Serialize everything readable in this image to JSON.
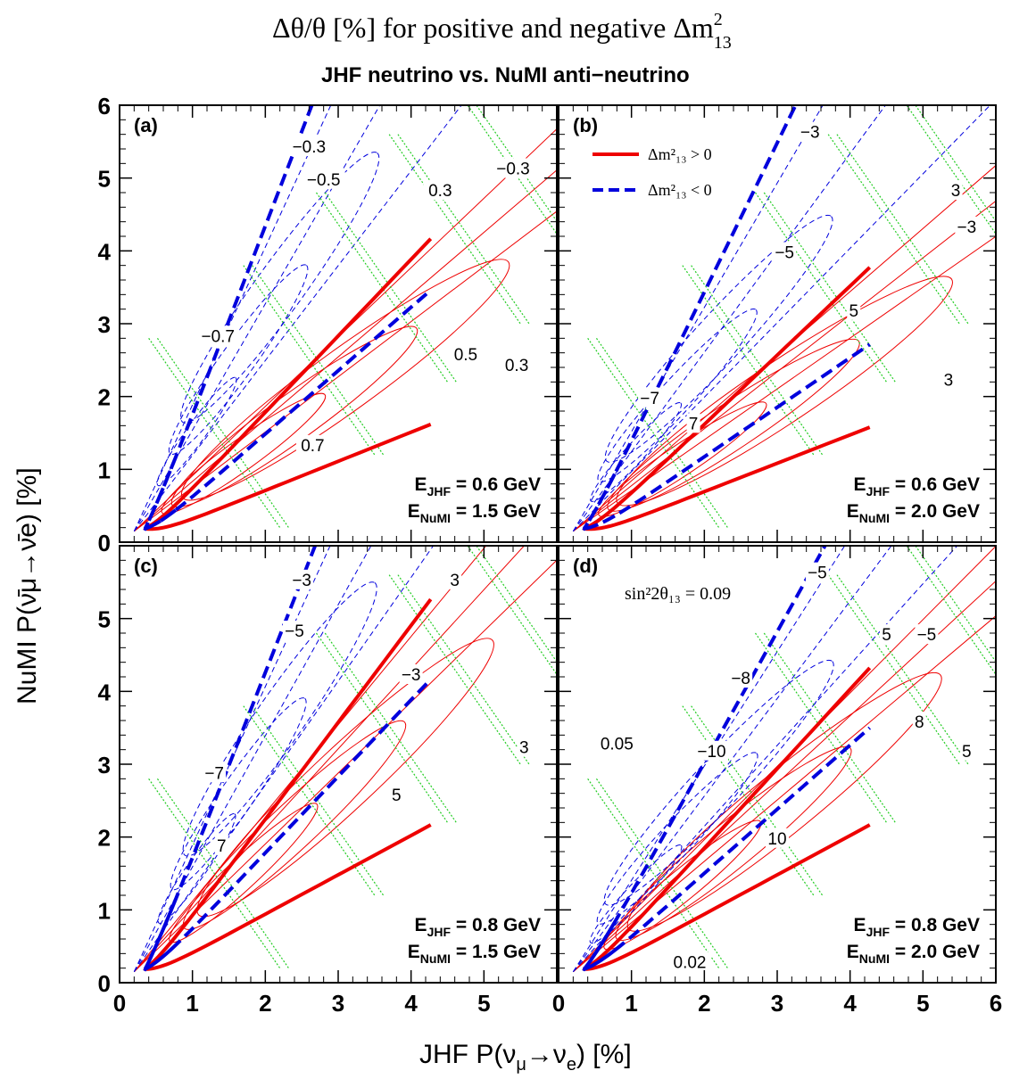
{
  "figure": {
    "title": "Δθ/θ [%]  for positive and negative Δm",
    "title_sup": "2",
    "title_sub": "13",
    "subtitle": "JHF neutrino vs. NuMI anti−neutrino",
    "xlabel_pre": "JHF P(ν",
    "xlabel_sub1": "μ",
    "xlabel_mid": "→ν",
    "xlabel_sub2": "e",
    "xlabel_post": ") [%]",
    "ylabel": "NuMI P(ν̄μ→ν̄e) [%]",
    "legend": {
      "pos_label": "Δm²₁₃ > 0",
      "neg_label": "Δm²₁₃ < 0",
      "pos_color": "#ee0000",
      "neg_color": "#0000dd"
    },
    "colors": {
      "red": "#ee0000",
      "blue": "#0000dd",
      "green": "#22cc22"
    }
  },
  "chart_data": [
    {
      "panel": "(a)",
      "type": "line",
      "energy_line1": "E",
      "energy_sub1": "JHF",
      "energy_val1": " = 0.6 GeV",
      "energy_line2": "E",
      "energy_sub2": "NuMI",
      "energy_val2": " = 1.5 GeV",
      "xlim": [
        0,
        6
      ],
      "ylim": [
        0,
        6
      ],
      "x_ticks": [
        "0",
        "1",
        "2",
        "3",
        "4",
        "5",
        ""
      ],
      "y_ticks": [
        "0",
        "1",
        "2",
        "3",
        "4",
        "5",
        "6"
      ],
      "labels": [
        {
          "text": "−0.3",
          "x": 2.6,
          "y": 5.4
        },
        {
          "text": "−0.5",
          "x": 2.8,
          "y": 4.95
        },
        {
          "text": "0.3",
          "x": 4.4,
          "y": 4.8
        },
        {
          "text": "−0.3",
          "x": 5.4,
          "y": 5.1
        },
        {
          "text": "−0.7",
          "x": 1.35,
          "y": 2.8
        },
        {
          "text": "0.5",
          "x": 4.75,
          "y": 2.55
        },
        {
          "text": "0.3",
          "x": 5.45,
          "y": 2.4
        },
        {
          "text": "0.7",
          "x": 2.65,
          "y": 1.3
        }
      ],
      "curves": {
        "red_upper_slope": 1.05,
        "red_lower_slope": 0.4,
        "blue_upper_slope": 2.6,
        "blue_lower_slope": 0.87
      }
    },
    {
      "panel": "(b)",
      "type": "line",
      "energy_line1": "E",
      "energy_sub1": "JHF",
      "energy_val1": " = 0.6 GeV",
      "energy_line2": "E",
      "energy_sub2": "NuMI",
      "energy_val2": " = 2.0 GeV",
      "xlim": [
        0,
        6
      ],
      "ylim": [
        0,
        6
      ],
      "x_ticks": [
        "0",
        "1",
        "2",
        "3",
        "4",
        "5",
        ""
      ],
      "y_ticks": [
        "0",
        "1",
        "2",
        "3",
        "4",
        "5",
        ""
      ],
      "labels": [
        {
          "text": "−3",
          "x": 3.45,
          "y": 5.6
        },
        {
          "text": "3",
          "x": 5.45,
          "y": 4.8
        },
        {
          "text": "−3",
          "x": 5.6,
          "y": 4.3
        },
        {
          "text": "−5",
          "x": 3.1,
          "y": 3.95
        },
        {
          "text": "5",
          "x": 4.05,
          "y": 3.15
        },
        {
          "text": "−7",
          "x": 1.25,
          "y": 1.95
        },
        {
          "text": "7",
          "x": 1.85,
          "y": 1.6
        },
        {
          "text": "3",
          "x": 5.35,
          "y": 2.2
        }
      ],
      "legend": true,
      "curves": {
        "red_upper_slope": 0.95,
        "red_lower_slope": 0.39,
        "blue_upper_slope": 2.05,
        "blue_lower_slope": 0.68
      }
    },
    {
      "panel": "(c)",
      "type": "line",
      "energy_line1": "E",
      "energy_sub1": "JHF",
      "energy_val1": " = 0.8 GeV",
      "energy_line2": "E",
      "energy_sub2": "NuMI",
      "energy_val2": " = 1.5 GeV",
      "xlim": [
        0,
        6
      ],
      "ylim": [
        0,
        6
      ],
      "x_ticks": [
        "0",
        "1",
        "2",
        "3",
        "4",
        "5",
        ""
      ],
      "y_ticks": [
        "0",
        "1",
        "2",
        "3",
        "4",
        "5",
        ""
      ],
      "labels": [
        {
          "text": "−3",
          "x": 2.5,
          "y": 5.5
        },
        {
          "text": "3",
          "x": 4.6,
          "y": 5.5
        },
        {
          "text": "−5",
          "x": 2.4,
          "y": 4.8
        },
        {
          "text": "−3",
          "x": 4.0,
          "y": 4.2
        },
        {
          "text": "3",
          "x": 5.55,
          "y": 3.2
        },
        {
          "text": "−7",
          "x": 1.3,
          "y": 2.85
        },
        {
          "text": "5",
          "x": 3.8,
          "y": 2.55
        },
        {
          "text": "7",
          "x": 1.4,
          "y": 1.85
        }
      ],
      "curves": {
        "red_upper_slope": 1.33,
        "red_lower_slope": 0.54,
        "blue_upper_slope": 2.55,
        "blue_lower_slope": 1.05
      }
    },
    {
      "panel": "(d)",
      "type": "line",
      "energy_line1": "E",
      "energy_sub1": "JHF",
      "energy_val1": " = 0.8 GeV",
      "energy_line2": "E",
      "energy_sub2": "NuMI",
      "energy_val2": " = 2.0 GeV",
      "annotation": "sin²2θ₁₃ = 0.09",
      "xlim": [
        0,
        6
      ],
      "ylim": [
        0,
        6
      ],
      "x_ticks": [
        "0",
        "1",
        "2",
        "3",
        "4",
        "5",
        "6"
      ],
      "y_ticks": [
        "0",
        "1",
        "2",
        "3",
        "4",
        "5",
        ""
      ],
      "labels": [
        {
          "text": "−5",
          "x": 3.55,
          "y": 5.6
        },
        {
          "text": "5",
          "x": 4.5,
          "y": 4.75
        },
        {
          "text": "−5",
          "x": 5.05,
          "y": 4.75
        },
        {
          "text": "−8",
          "x": 2.5,
          "y": 4.15
        },
        {
          "text": "8",
          "x": 4.95,
          "y": 3.55
        },
        {
          "text": "0.05",
          "x": 0.8,
          "y": 3.25
        },
        {
          "text": "−10",
          "x": 2.1,
          "y": 3.15
        },
        {
          "text": "5",
          "x": 5.6,
          "y": 3.15
        },
        {
          "text": "10",
          "x": 3.0,
          "y": 1.95
        },
        {
          "text": "0.02",
          "x": 1.8,
          "y": 0.25
        }
      ],
      "curves": {
        "red_upper_slope": 1.09,
        "red_lower_slope": 0.54,
        "blue_upper_slope": 1.8,
        "blue_lower_slope": 0.88
      }
    }
  ]
}
